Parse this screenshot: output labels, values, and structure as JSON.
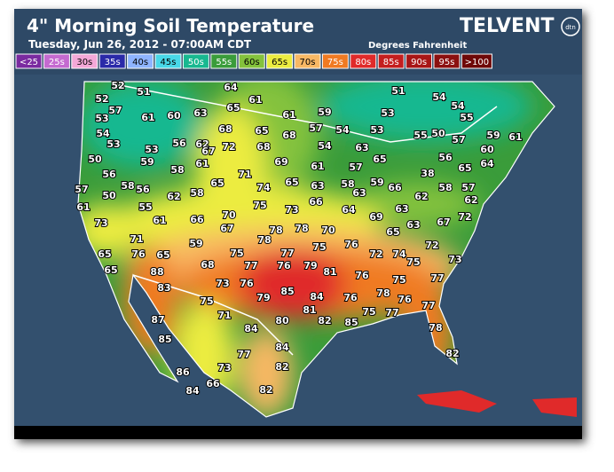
{
  "header": {
    "title": "4\" Morning Soil Temperature",
    "subtitle": "Tuesday, Jun 26, 2012 - 07:00AM CDT",
    "units": "Degrees Fahrenheit",
    "brand": "TELVENT",
    "brand_mark": "dtn"
  },
  "legend": [
    {
      "label": "<25",
      "color": "#7a2aa0"
    },
    {
      "label": "25s",
      "color": "#c46ad0"
    },
    {
      "label": "30s",
      "color": "#f4a8d8"
    },
    {
      "label": "35s",
      "color": "#2a2aa8"
    },
    {
      "label": "40s",
      "color": "#8eb4ff"
    },
    {
      "label": "45s",
      "color": "#48d8e8"
    },
    {
      "label": "50s",
      "color": "#18b890"
    },
    {
      "label": "55s",
      "color": "#3a9c3a"
    },
    {
      "label": "60s",
      "color": "#84c23c"
    },
    {
      "label": "65s",
      "color": "#ecec40"
    },
    {
      "label": "70s",
      "color": "#f8b864"
    },
    {
      "label": "75s",
      "color": "#f07a22"
    },
    {
      "label": "80s",
      "color": "#e02a2a"
    },
    {
      "label": "85s",
      "color": "#c41e1e"
    },
    {
      "label": "90s",
      "color": "#a81616"
    },
    {
      "label": "95s",
      "color": "#8c1010"
    },
    {
      "label": ">100",
      "color": "#6e0808"
    }
  ],
  "stations": [
    52,
    51,
    64,
    51,
    54,
    54,
    52,
    57,
    61,
    65,
    63,
    60,
    61,
    61,
    59,
    53,
    55,
    53,
    54,
    53,
    68,
    65,
    68,
    57,
    54,
    53,
    55,
    50,
    57,
    59,
    61,
    53,
    56,
    62,
    67,
    72,
    68,
    54,
    63,
    60,
    56,
    64,
    50,
    59,
    58,
    61,
    69,
    61,
    57,
    65,
    38,
    65,
    56,
    58,
    56,
    62,
    58,
    65,
    71,
    74,
    65,
    63,
    58,
    59,
    66,
    62,
    58,
    57,
    57,
    50,
    63,
    61,
    55,
    75,
    73,
    66,
    64,
    63,
    62,
    73,
    61,
    66,
    70,
    67,
    69,
    63,
    67,
    72,
    78,
    78,
    70,
    65,
    71,
    59,
    78,
    75,
    76,
    72,
    65,
    76,
    65,
    75,
    77,
    72,
    74,
    73,
    65,
    88,
    68,
    77,
    76,
    79,
    81,
    76,
    75,
    77,
    83,
    73,
    76,
    79,
    85,
    84,
    76,
    78,
    76,
    75,
    75,
    81,
    77,
    87,
    71,
    80,
    82,
    85,
    75,
    77,
    84,
    78,
    85,
    84,
    77,
    82,
    82,
    86,
    73,
    84,
    66,
    82
  ]
}
